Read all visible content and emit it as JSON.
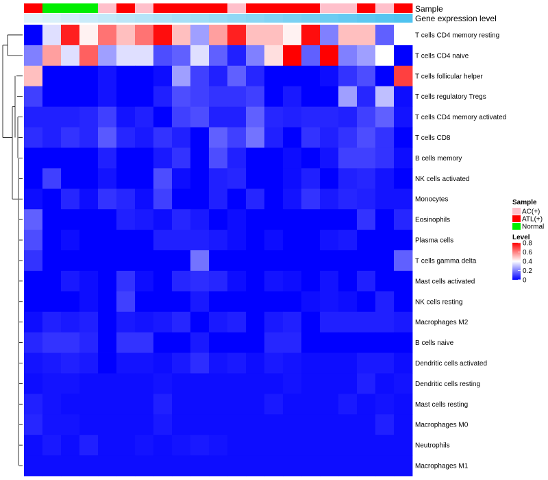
{
  "chart_data": {
    "type": "heatmap",
    "title": "",
    "annotation_labels": [
      "Sample",
      "Gene expression level"
    ],
    "sample_groups": [
      "ATL(+)",
      "Normal",
      "Normal",
      "Normal",
      "AC(+)",
      "ATL(+)",
      "AC(+)",
      "ATL(+)",
      "ATL(+)",
      "ATL(+)",
      "ATL(+)",
      "AC(+)",
      "ATL(+)",
      "ATL(+)",
      "ATL(+)",
      "ATL(+)",
      "AC(+)",
      "AC(+)",
      "ATL(+)",
      "AC(+)",
      "ATL(+)"
    ],
    "expression_level": [
      0.2,
      0.22,
      0.24,
      0.26,
      0.28,
      0.3,
      0.32,
      0.34,
      0.36,
      0.38,
      0.4,
      0.42,
      0.44,
      0.46,
      0.48,
      0.5,
      0.52,
      0.54,
      0.56,
      0.58,
      0.6
    ],
    "rows": [
      "T cells CD4 memory resting",
      "T cells CD4 naive",
      "T cells follicular helper",
      "T cells regulatory  Tregs",
      "T cells CD4 memory activated",
      "T cells CD8",
      "B cells memory",
      "NK cells activated",
      "Monocytes",
      "Eosinophils",
      "Plasma cells",
      "T cells gamma delta",
      "Mast cells activated",
      "NK cells resting",
      "Macrophages M2",
      "B cells naive",
      "Dendritic cells activated",
      "Dendritic cells resting",
      "Mast cells resting",
      "Macrophages M0",
      "Neutrophils",
      "Macrophages M1"
    ],
    "values": [
      [
        0.0,
        0.35,
        0.75,
        0.42,
        0.62,
        0.5,
        0.62,
        0.78,
        0.5,
        0.25,
        0.55,
        0.75,
        0.5,
        0.5,
        0.42,
        0.78,
        0.2,
        0.5,
        0.5,
        0.15,
        0.4
      ],
      [
        0.2,
        0.55,
        0.35,
        0.65,
        0.25,
        0.35,
        0.35,
        0.12,
        0.15,
        0.35,
        0.15,
        0.05,
        0.2,
        0.45,
        0.8,
        0.15,
        0.8,
        0.2,
        0.25,
        0.4,
        0.0
      ],
      [
        0.5,
        0.0,
        0.0,
        0.0,
        0.03,
        0.0,
        0.0,
        0.02,
        0.25,
        0.1,
        0.05,
        0.15,
        0.06,
        0.0,
        0.0,
        0.0,
        0.02,
        0.08,
        0.12,
        0.0,
        0.7
      ],
      [
        0.1,
        0.0,
        0.0,
        0.0,
        0.03,
        0.0,
        0.0,
        0.05,
        0.12,
        0.1,
        0.08,
        0.08,
        0.1,
        0.0,
        0.04,
        0.0,
        0.0,
        0.25,
        0.06,
        0.3,
        0.02
      ],
      [
        0.05,
        0.05,
        0.05,
        0.06,
        0.1,
        0.03,
        0.05,
        0.0,
        0.1,
        0.12,
        0.05,
        0.05,
        0.15,
        0.06,
        0.05,
        0.06,
        0.06,
        0.05,
        0.1,
        0.15,
        0.03
      ],
      [
        0.07,
        0.05,
        0.08,
        0.06,
        0.14,
        0.06,
        0.04,
        0.08,
        0.05,
        0.0,
        0.15,
        0.1,
        0.18,
        0.05,
        0.0,
        0.08,
        0.05,
        0.08,
        0.12,
        0.08,
        0.0
      ],
      [
        0.0,
        0.0,
        0.0,
        0.0,
        0.05,
        0.0,
        0.0,
        0.04,
        0.08,
        0.0,
        0.12,
        0.05,
        0.0,
        0.0,
        0.02,
        0.0,
        0.03,
        0.1,
        0.1,
        0.08,
        0.02
      ],
      [
        0.0,
        0.1,
        0.0,
        0.0,
        0.03,
        0.0,
        0.0,
        0.12,
        0.02,
        0.0,
        0.05,
        0.06,
        0.0,
        0.0,
        0.02,
        0.05,
        0.0,
        0.05,
        0.06,
        0.03,
        0.0
      ],
      [
        0.02,
        0.0,
        0.06,
        0.02,
        0.08,
        0.06,
        0.02,
        0.1,
        0.0,
        0.0,
        0.05,
        0.0,
        0.06,
        0.0,
        0.03,
        0.08,
        0.04,
        0.06,
        0.05,
        0.03,
        0.03
      ],
      [
        0.15,
        0.0,
        0.0,
        0.0,
        0.0,
        0.05,
        0.04,
        0.02,
        0.06,
        0.04,
        0.0,
        0.02,
        0.0,
        0.0,
        0.0,
        0.0,
        0.0,
        0.0,
        0.08,
        0.0,
        0.06
      ],
      [
        0.12,
        0.0,
        0.02,
        0.0,
        0.0,
        0.0,
        0.0,
        0.05,
        0.05,
        0.05,
        0.04,
        0.02,
        0.0,
        0.02,
        0.0,
        0.0,
        0.03,
        0.04,
        0.0,
        0.0,
        0.0
      ],
      [
        0.08,
        0.0,
        0.0,
        0.0,
        0.0,
        0.0,
        0.0,
        0.0,
        0.0,
        0.18,
        0.0,
        0.0,
        0.0,
        0.0,
        0.0,
        0.0,
        0.0,
        0.0,
        0.0,
        0.0,
        0.15
      ],
      [
        0.0,
        0.0,
        0.04,
        0.02,
        0.0,
        0.08,
        0.02,
        0.0,
        0.06,
        0.07,
        0.06,
        0.02,
        0.0,
        0.03,
        0.02,
        0.0,
        0.03,
        0.0,
        0.05,
        0.0,
        0.0
      ],
      [
        0.0,
        0.0,
        0.0,
        0.02,
        0.0,
        0.1,
        0.0,
        0.0,
        0.0,
        0.04,
        0.0,
        0.0,
        0.0,
        0.0,
        0.0,
        0.02,
        0.03,
        0.02,
        0.0,
        0.05,
        0.0
      ],
      [
        0.02,
        0.05,
        0.04,
        0.05,
        0.0,
        0.04,
        0.03,
        0.04,
        0.06,
        0.0,
        0.04,
        0.05,
        0.0,
        0.04,
        0.05,
        0.0,
        0.05,
        0.05,
        0.05,
        0.05,
        0.04
      ],
      [
        0.06,
        0.08,
        0.08,
        0.06,
        0.0,
        0.08,
        0.08,
        0.0,
        0.0,
        0.04,
        0.0,
        0.0,
        0.0,
        0.06,
        0.06,
        0.0,
        0.0,
        0.0,
        0.0,
        0.0,
        0.0
      ],
      [
        0.03,
        0.04,
        0.05,
        0.04,
        0.0,
        0.03,
        0.03,
        0.02,
        0.04,
        0.07,
        0.03,
        0.04,
        0.02,
        0.04,
        0.03,
        0.02,
        0.02,
        0.02,
        0.04,
        0.04,
        0.02
      ],
      [
        0.02,
        0.03,
        0.03,
        0.02,
        0.02,
        0.02,
        0.02,
        0.03,
        0.02,
        0.02,
        0.02,
        0.02,
        0.02,
        0.02,
        0.03,
        0.02,
        0.02,
        0.02,
        0.05,
        0.02,
        0.03
      ],
      [
        0.05,
        0.03,
        0.02,
        0.02,
        0.02,
        0.02,
        0.02,
        0.05,
        0.02,
        0.02,
        0.02,
        0.02,
        0.02,
        0.04,
        0.02,
        0.02,
        0.02,
        0.04,
        0.02,
        0.03,
        0.02
      ],
      [
        0.06,
        0.03,
        0.03,
        0.02,
        0.02,
        0.02,
        0.02,
        0.04,
        0.02,
        0.02,
        0.02,
        0.02,
        0.02,
        0.02,
        0.02,
        0.02,
        0.02,
        0.02,
        0.02,
        0.05,
        0.02
      ],
      [
        0.02,
        0.04,
        0.02,
        0.05,
        0.02,
        0.02,
        0.03,
        0.02,
        0.03,
        0.04,
        0.03,
        0.02,
        0.02,
        0.02,
        0.02,
        0.02,
        0.02,
        0.02,
        0.02,
        0.02,
        0.02
      ],
      [
        0.02,
        0.02,
        0.02,
        0.02,
        0.02,
        0.02,
        0.02,
        0.02,
        0.02,
        0.02,
        0.02,
        0.02,
        0.02,
        0.02,
        0.02,
        0.02,
        0.02,
        0.02,
        0.02,
        0.02,
        0.02
      ]
    ],
    "legend_sample": {
      "title": "Sample",
      "entries": [
        {
          "label": "AC(+)",
          "color": "#ffc0cb"
        },
        {
          "label": "ATL(+)",
          "color": "#ff0000"
        },
        {
          "label": "Normal",
          "color": "#00ee00"
        }
      ]
    },
    "legend_level": {
      "title": "Level",
      "ticks": [
        {
          "value": 0.8,
          "label": "0.8"
        },
        {
          "value": 0.6,
          "label": "0.6"
        },
        {
          "value": 0.4,
          "label": "0.4"
        },
        {
          "value": 0.2,
          "label": "0.2"
        },
        {
          "value": 0.0,
          "label": "0"
        }
      ],
      "range": [
        0,
        0.8
      ]
    },
    "colors": {
      "low": "#0000ff",
      "mid": "#ffffff",
      "high": "#ff0000",
      "expr_low": "#e0f2fb",
      "expr_high": "#4fc3f0"
    }
  }
}
